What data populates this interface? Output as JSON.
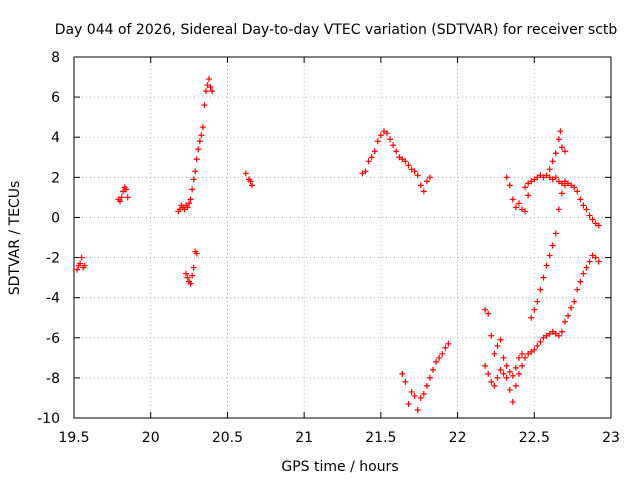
{
  "chart_data": {
    "type": "scatter",
    "title": "Day 044 of 2026, Sidereal Day-to-day VTEC variation (SDTVAR) for receiver sctb",
    "xlabel": "GPS time / hours",
    "ylabel": "SDTVAR / TECUs",
    "xlim": [
      19.5,
      23
    ],
    "ylim": [
      -10,
      8
    ],
    "xticks": [
      "19.5",
      "20",
      "20.5",
      "21",
      "21.5",
      "22",
      "22.5",
      "23"
    ],
    "yticks": [
      "-10",
      "-8",
      "-6",
      "-4",
      "-2",
      "0",
      "2",
      "4",
      "6",
      "8"
    ],
    "grid": true,
    "marker": "+",
    "color": "#ff0000",
    "series": [
      {
        "name": "SDTVAR",
        "points": [
          [
            19.52,
            -2.6
          ],
          [
            19.53,
            -2.4
          ],
          [
            19.54,
            -2.3
          ],
          [
            19.55,
            -2.0
          ],
          [
            19.56,
            -2.5
          ],
          [
            19.57,
            -2.4
          ],
          [
            19.79,
            0.9
          ],
          [
            19.8,
            0.8
          ],
          [
            19.81,
            1.0
          ],
          [
            19.82,
            1.3
          ],
          [
            19.83,
            1.5
          ],
          [
            19.84,
            1.4
          ],
          [
            19.85,
            1.0
          ],
          [
            20.18,
            0.3
          ],
          [
            20.19,
            0.4
          ],
          [
            20.2,
            0.6
          ],
          [
            20.21,
            0.5
          ],
          [
            20.22,
            0.4
          ],
          [
            20.23,
            0.6
          ],
          [
            20.24,
            0.5
          ],
          [
            20.25,
            0.7
          ],
          [
            20.26,
            0.9
          ],
          [
            20.27,
            1.4
          ],
          [
            20.28,
            1.9
          ],
          [
            20.29,
            2.3
          ],
          [
            20.3,
            2.9
          ],
          [
            20.31,
            3.4
          ],
          [
            20.32,
            3.8
          ],
          [
            20.33,
            4.1
          ],
          [
            20.34,
            4.5
          ],
          [
            20.35,
            5.6
          ],
          [
            20.36,
            6.3
          ],
          [
            20.37,
            6.6
          ],
          [
            20.38,
            6.9
          ],
          [
            20.39,
            6.5
          ],
          [
            20.4,
            6.3
          ],
          [
            20.23,
            -2.8
          ],
          [
            20.24,
            -3.0
          ],
          [
            20.25,
            -3.2
          ],
          [
            20.26,
            -3.3
          ],
          [
            20.27,
            -2.9
          ],
          [
            20.28,
            -2.5
          ],
          [
            20.29,
            -1.7
          ],
          [
            20.3,
            -1.8
          ],
          [
            20.62,
            2.2
          ],
          [
            20.64,
            1.9
          ],
          [
            20.65,
            1.8
          ],
          [
            20.66,
            1.6
          ],
          [
            21.38,
            2.2
          ],
          [
            21.4,
            2.3
          ],
          [
            21.42,
            2.8
          ],
          [
            21.44,
            3.0
          ],
          [
            21.46,
            3.3
          ],
          [
            21.48,
            3.8
          ],
          [
            21.5,
            4.1
          ],
          [
            21.52,
            4.3
          ],
          [
            21.54,
            4.2
          ],
          [
            21.56,
            3.9
          ],
          [
            21.58,
            3.6
          ],
          [
            21.6,
            3.3
          ],
          [
            21.62,
            3.0
          ],
          [
            21.64,
            2.9
          ],
          [
            21.66,
            2.8
          ],
          [
            21.68,
            2.6
          ],
          [
            21.7,
            2.4
          ],
          [
            21.72,
            2.3
          ],
          [
            21.74,
            2.1
          ],
          [
            21.76,
            1.6
          ],
          [
            21.78,
            1.3
          ],
          [
            21.8,
            1.8
          ],
          [
            21.82,
            2.0
          ],
          [
            21.64,
            -7.8
          ],
          [
            21.66,
            -8.2
          ],
          [
            21.68,
            -9.3
          ],
          [
            21.7,
            -8.7
          ],
          [
            21.72,
            -8.9
          ],
          [
            21.74,
            -9.6
          ],
          [
            21.76,
            -9.0
          ],
          [
            21.78,
            -8.8
          ],
          [
            21.8,
            -8.4
          ],
          [
            21.82,
            -8.0
          ],
          [
            21.84,
            -7.6
          ],
          [
            21.86,
            -7.2
          ],
          [
            21.88,
            -7.0
          ],
          [
            21.9,
            -6.8
          ],
          [
            21.92,
            -6.5
          ],
          [
            21.94,
            -6.3
          ],
          [
            22.18,
            -4.6
          ],
          [
            22.2,
            -4.8
          ],
          [
            22.22,
            -5.9
          ],
          [
            22.24,
            -6.8
          ],
          [
            22.26,
            -6.4
          ],
          [
            22.28,
            -6.1
          ],
          [
            22.3,
            -7.0
          ],
          [
            22.32,
            -7.4
          ],
          [
            22.34,
            -8.6
          ],
          [
            22.36,
            -9.2
          ],
          [
            22.38,
            -8.4
          ],
          [
            22.4,
            -7.8
          ],
          [
            22.42,
            -7.4
          ],
          [
            22.44,
            -7.0
          ],
          [
            22.46,
            -6.8
          ],
          [
            22.48,
            -6.7
          ],
          [
            22.5,
            -6.6
          ],
          [
            22.52,
            -6.4
          ],
          [
            22.54,
            -6.2
          ],
          [
            22.56,
            -6.0
          ],
          [
            22.58,
            -5.9
          ],
          [
            22.6,
            -5.8
          ],
          [
            22.62,
            -5.7
          ],
          [
            22.64,
            -5.8
          ],
          [
            22.66,
            -5.9
          ],
          [
            22.68,
            -5.7
          ],
          [
            22.7,
            -5.2
          ],
          [
            22.72,
            -4.9
          ],
          [
            22.74,
            -4.5
          ],
          [
            22.76,
            -4.2
          ],
          [
            22.78,
            -3.6
          ],
          [
            22.8,
            -3.2
          ],
          [
            22.82,
            -2.8
          ],
          [
            22.84,
            -2.5
          ],
          [
            22.86,
            -2.2
          ],
          [
            22.88,
            -1.9
          ],
          [
            22.9,
            -2.0
          ],
          [
            22.92,
            -2.2
          ],
          [
            22.18,
            -7.4
          ],
          [
            22.2,
            -7.8
          ],
          [
            22.22,
            -8.2
          ],
          [
            22.24,
            -8.4
          ],
          [
            22.26,
            -8.0
          ],
          [
            22.28,
            -7.6
          ],
          [
            22.3,
            -7.8
          ],
          [
            22.32,
            -8.0
          ],
          [
            22.34,
            -7.7
          ],
          [
            22.36,
            -7.9
          ],
          [
            22.38,
            -7.5
          ],
          [
            22.4,
            -7.0
          ],
          [
            22.42,
            -6.8
          ],
          [
            22.48,
            -5.0
          ],
          [
            22.5,
            -4.6
          ],
          [
            22.52,
            -4.2
          ],
          [
            22.54,
            -3.6
          ],
          [
            22.56,
            -3.0
          ],
          [
            22.58,
            -2.4
          ],
          [
            22.6,
            -1.9
          ],
          [
            22.62,
            -1.4
          ],
          [
            22.64,
            -0.8
          ],
          [
            22.66,
            0.4
          ],
          [
            22.68,
            1.2
          ],
          [
            22.7,
            1.6
          ],
          [
            22.32,
            2.0
          ],
          [
            22.34,
            1.6
          ],
          [
            22.36,
            0.9
          ],
          [
            22.38,
            0.5
          ],
          [
            22.4,
            0.7
          ],
          [
            22.42,
            0.4
          ],
          [
            22.44,
            0.3
          ],
          [
            22.46,
            1.1
          ],
          [
            22.44,
            1.5
          ],
          [
            22.46,
            1.7
          ],
          [
            22.48,
            1.8
          ],
          [
            22.5,
            1.9
          ],
          [
            22.52,
            2.0
          ],
          [
            22.54,
            2.1
          ],
          [
            22.56,
            2.0
          ],
          [
            22.58,
            2.1
          ],
          [
            22.6,
            2.0
          ],
          [
            22.62,
            1.9
          ],
          [
            22.64,
            2.0
          ],
          [
            22.66,
            1.8
          ],
          [
            22.68,
            1.7
          ],
          [
            22.7,
            1.8
          ],
          [
            22.72,
            1.7
          ],
          [
            22.74,
            1.6
          ],
          [
            22.76,
            1.5
          ],
          [
            22.78,
            1.3
          ],
          [
            22.8,
            0.9
          ],
          [
            22.82,
            0.6
          ],
          [
            22.84,
            0.4
          ],
          [
            22.86,
            0.1
          ],
          [
            22.88,
            -0.1
          ],
          [
            22.9,
            -0.3
          ],
          [
            22.92,
            -0.4
          ],
          [
            22.6,
            2.4
          ],
          [
            22.62,
            2.8
          ],
          [
            22.64,
            3.2
          ],
          [
            22.66,
            3.9
          ],
          [
            22.67,
            4.3
          ],
          [
            22.68,
            3.5
          ],
          [
            22.7,
            3.3
          ]
        ]
      }
    ]
  }
}
